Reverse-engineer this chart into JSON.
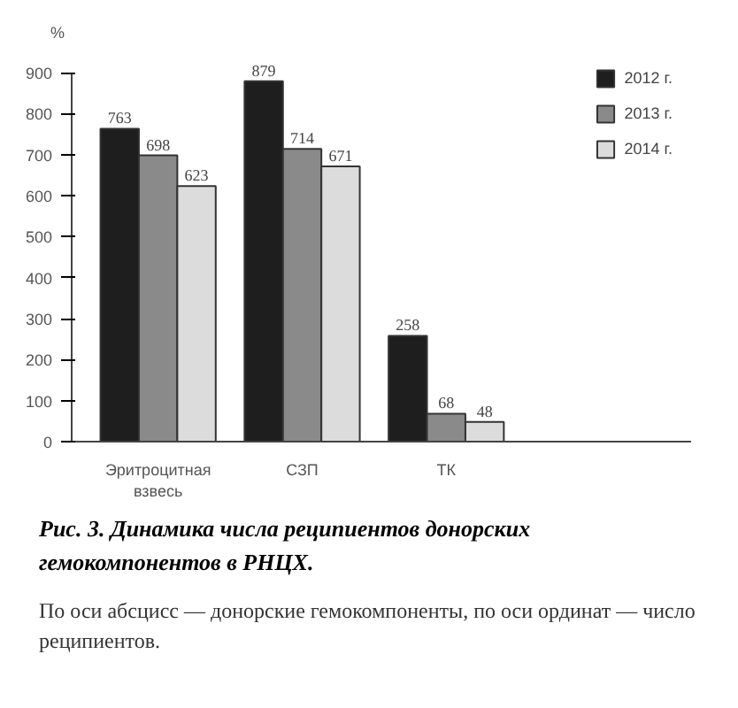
{
  "chart_data": {
    "type": "bar",
    "title": "Рис. 3. Динамика числа реципиентов донорских гемокомпонентов в РНЦХ.",
    "ylabel": "%",
    "annotations": [
      "По оси абсцисс — донорские гемокомпоненты, по оси ординат — число реципиентов."
    ],
    "categories": [
      "Эритроцитная взвесь",
      "СЗП",
      "ТК"
    ],
    "series": [
      {
        "name": "2012 г.",
        "color": "#1e1e1e",
        "values": [
          763,
          879,
          258
        ]
      },
      {
        "name": "2013 г.",
        "color": "#8a8a8a",
        "values": [
          698,
          714,
          68
        ]
      },
      {
        "name": "2014 г.",
        "color": "#dcdcdc",
        "values": [
          623,
          671,
          48
        ]
      }
    ],
    "ylim": [
      0,
      900
    ],
    "yticks": [
      0,
      100,
      200,
      300,
      400,
      500,
      600,
      700,
      800,
      900
    ],
    "data_labels": true,
    "legend": "top right",
    "grid": false
  }
}
